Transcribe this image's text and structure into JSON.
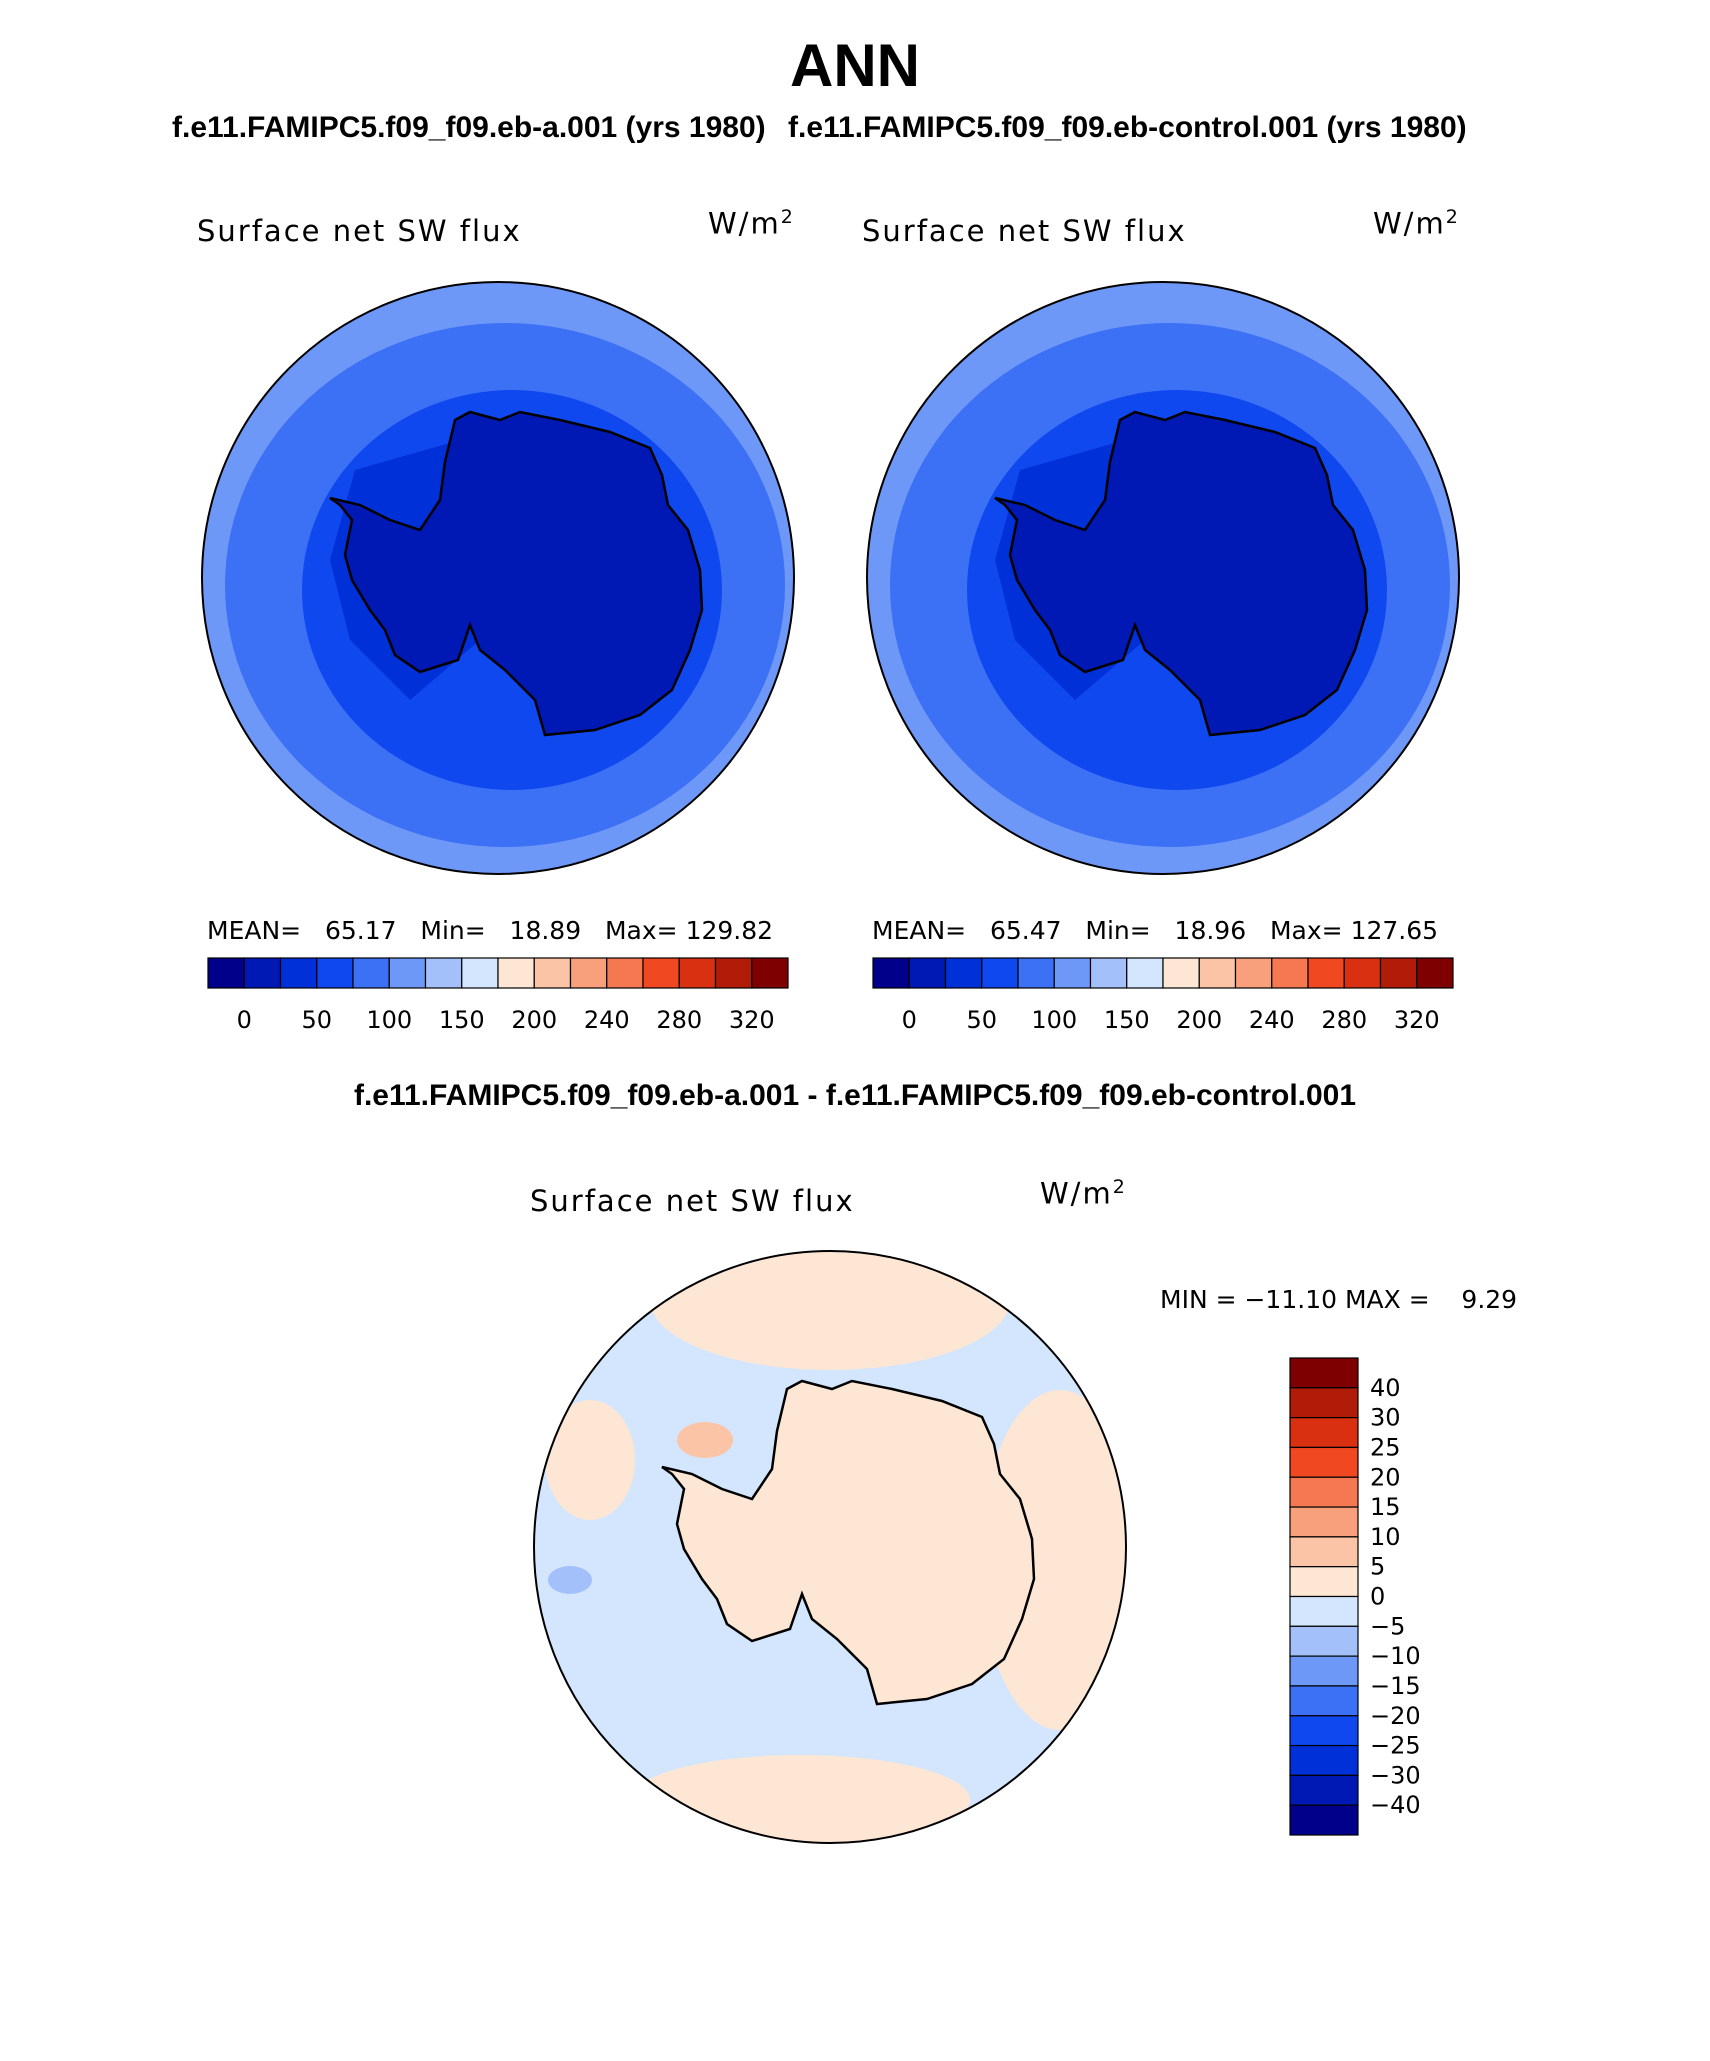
{
  "title": "ANN",
  "panels": [
    {
      "case": "f.e11.FAMIPC5.f09_f09.eb-a.001 (yrs 1980)",
      "variable": "Surface net SW flux",
      "units_base": "W/m",
      "units_exp": "2",
      "stats": {
        "mean_label": "MEAN=",
        "mean": "65.17",
        "min_label": "Min=",
        "min": "18.89",
        "max_label": "Max=",
        "max": "129.82"
      }
    },
    {
      "case": "f.e11.FAMIPC5.f09_f09.eb-control.001 (yrs 1980)",
      "variable": "Surface net SW flux",
      "units_base": "W/m",
      "units_exp": "2",
      "stats": {
        "mean_label": "MEAN=",
        "mean": "65.47",
        "min_label": "Min=",
        "min": "18.96",
        "max_label": "Max=",
        "max": "127.65"
      }
    }
  ],
  "difference": {
    "title": "f.e11.FAMIPC5.f09_f09.eb-a.001 - f.e11.FAMIPC5.f09_f09.eb-control.001",
    "variable": "Surface net SW flux",
    "units_base": "W/m",
    "units_exp": "2",
    "stats": "MIN = −11.10 MAX =    9.29"
  },
  "colorbar_abs": {
    "colors": [
      "#00008a",
      "#0018b4",
      "#0030d8",
      "#1048f0",
      "#3c70f5",
      "#6e98f8",
      "#a4c0fa",
      "#d4e6fd",
      "#fde6d4",
      "#fcc4a6",
      "#f8a07c",
      "#f57850",
      "#f04820",
      "#d83010",
      "#b01c08",
      "#7e0000"
    ],
    "tick_labels": [
      "0",
      "50",
      "100",
      "150",
      "200",
      "240",
      "280",
      "320"
    ]
  },
  "colorbar_diff": {
    "colors": [
      "#00008a",
      "#0018b4",
      "#0030d8",
      "#1048f0",
      "#3c70f5",
      "#6e98f8",
      "#a4c0fa",
      "#d4e6fd",
      "#fde6d4",
      "#fcc4a6",
      "#f8a07c",
      "#f57850",
      "#f04820",
      "#d83010",
      "#b01c08",
      "#7e0000"
    ],
    "tick_labels": [
      "40",
      "30",
      "25",
      "20",
      "15",
      "10",
      "5",
      "0",
      "−5",
      "−10",
      "−15",
      "−20",
      "−25",
      "−30",
      "−40"
    ]
  },
  "map_colors": {
    "ocean_far": "#6e98f8",
    "ocean_mid": "#3c70f5",
    "ocean_near": "#1048f0",
    "ice_shelf": "#0030d8",
    "continent": "#0018b4",
    "diff_neg": "#d4e6fd",
    "diff_pos": "#fde6d4",
    "diff_neg_strong": "#a4c0fa",
    "diff_pos_strong": "#fcc4a6"
  }
}
